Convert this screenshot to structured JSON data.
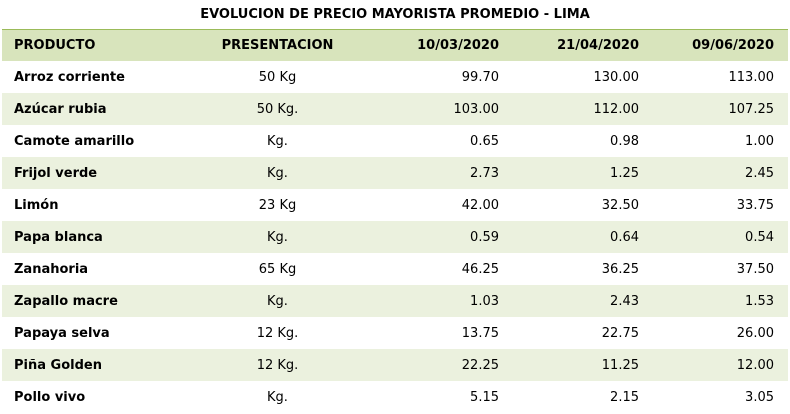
{
  "title": "EVOLUCION DE PRECIO MAYORISTA PROMEDIO - LIMA",
  "columns": [
    "PRODUCTO",
    "PRESENTACION",
    "10/03/2020",
    "21/04/2020",
    "09/06/2020"
  ],
  "rows": [
    {
      "producto": "Arroz corriente",
      "presentacion": "50 Kg",
      "d1": "99.70",
      "d2": "130.00",
      "d3": "113.00"
    },
    {
      "producto": "Azúcar rubia",
      "presentacion": "50 Kg.",
      "d1": "103.00",
      "d2": "112.00",
      "d3": "107.25"
    },
    {
      "producto": "Camote amarillo",
      "presentacion": "Kg.",
      "d1": "0.65",
      "d2": "0.98",
      "d3": "1.00"
    },
    {
      "producto": "Frijol verde",
      "presentacion": "Kg.",
      "d1": "2.73",
      "d2": "1.25",
      "d3": "2.45"
    },
    {
      "producto": "Limón",
      "presentacion": "23 Kg",
      "d1": "42.00",
      "d2": "32.50",
      "d3": "33.75"
    },
    {
      "producto": "Papa blanca",
      "presentacion": "Kg.",
      "d1": "0.59",
      "d2": "0.64",
      "d3": "0.54"
    },
    {
      "producto": "Zanahoria",
      "presentacion": "65 Kg",
      "d1": "46.25",
      "d2": "36.25",
      "d3": "37.50"
    },
    {
      "producto": "Zapallo macre",
      "presentacion": "Kg.",
      "d1": "1.03",
      "d2": "2.43",
      "d3": "1.53"
    },
    {
      "producto": "Papaya selva",
      "presentacion": "12 Kg.",
      "d1": "13.75",
      "d2": "22.75",
      "d3": "26.00"
    },
    {
      "producto": "Piña Golden",
      "presentacion": "12 Kg.",
      "d1": "22.25",
      "d2": "11.25",
      "d3": "12.00"
    },
    {
      "producto": "Pollo vivo",
      "presentacion": "Kg.",
      "d1": "5.15",
      "d2": "2.15",
      "d3": "3.05"
    }
  ],
  "colors": {
    "header_bg": "#d8e4bc",
    "band_bg": "#ebf1de",
    "border": "#9bbb59"
  }
}
